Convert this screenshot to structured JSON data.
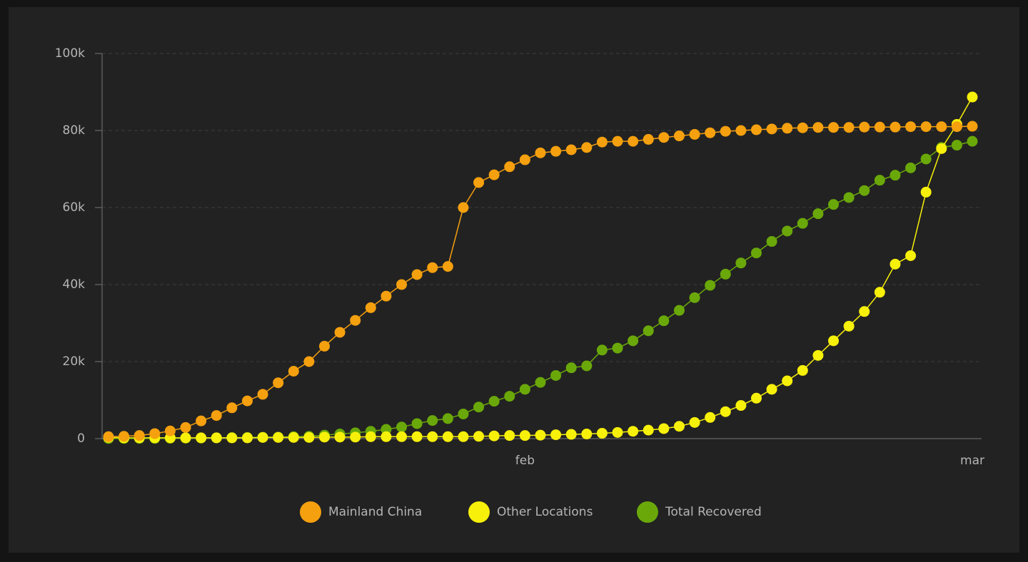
{
  "chart_data": {
    "type": "line",
    "categories": [
      null,
      null,
      null,
      null,
      null,
      null,
      null,
      null,
      null,
      null,
      null,
      null,
      null,
      null,
      null,
      null,
      null,
      null,
      null,
      null,
      null,
      null,
      null,
      null,
      null,
      null,
      null,
      "feb",
      null,
      null,
      null,
      null,
      null,
      null,
      null,
      null,
      null,
      null,
      null,
      null,
      null,
      null,
      null,
      null,
      null,
      null,
      null,
      null,
      null,
      null,
      null,
      null,
      null,
      null,
      null,
      null,
      "mar"
    ],
    "series": [
      {
        "name": "Mainland China",
        "color": "#f5a00f",
        "values": [
          500,
          600,
          800,
          1300,
          2000,
          2900,
          4600,
          6000,
          8000,
          9800,
          11500,
          14500,
          17500,
          20000,
          24000,
          27600,
          30700,
          34000,
          37000,
          40000,
          42600,
          44400,
          44700,
          60000,
          66500,
          68500,
          70600,
          72400,
          74200,
          74600,
          75000,
          75600,
          77000,
          77200,
          77200,
          77700,
          78200,
          78600,
          79000,
          79400,
          79800,
          80000,
          80200,
          80400,
          80600,
          80700,
          80800,
          80800,
          80800,
          80900,
          80900,
          80900,
          81000,
          81000,
          81000,
          81000,
          81100
        ]
      },
      {
        "name": "Other Locations",
        "color": "#f7f00a",
        "values": [
          300,
          200,
          200,
          200,
          200,
          200,
          200,
          200,
          200,
          200,
          300,
          300,
          300,
          300,
          400,
          400,
          400,
          500,
          500,
          500,
          500,
          500,
          500,
          500,
          600,
          700,
          800,
          800,
          900,
          1000,
          1100,
          1200,
          1400,
          1600,
          1900,
          2200,
          2600,
          3200,
          4200,
          5500,
          7000,
          8600,
          10500,
          12800,
          15000,
          17700,
          21600,
          25400,
          29200,
          33000,
          38000,
          45300,
          47500,
          64000,
          75300,
          81600,
          88700
        ]
      },
      {
        "name": "Total Recovered",
        "color": "#6aa80a",
        "values": [
          30,
          40,
          50,
          60,
          100,
          120,
          150,
          200,
          250,
          300,
          350,
          400,
          500,
          600,
          900,
          1200,
          1500,
          1900,
          2400,
          3000,
          3900,
          4700,
          5200,
          6400,
          8200,
          9700,
          11000,
          12800,
          14600,
          16400,
          18400,
          18900,
          23000,
          23500,
          25400,
          28000,
          30600,
          33300,
          36600,
          39800,
          42700,
          45600,
          48200,
          51200,
          53900,
          55900,
          58400,
          60800,
          62600,
          64400,
          67100,
          68400,
          70300,
          72600,
          75600,
          76200,
          77200
        ]
      }
    ],
    "ylim": [
      0,
      100000
    ],
    "yticks": [
      0,
      {
        "value": 20000,
        "label": "20k"
      },
      {
        "value": 40000,
        "label": "40k"
      },
      {
        "value": 60000,
        "label": "60k"
      },
      {
        "value": 80000,
        "label": "80k"
      },
      {
        "value": 100000,
        "label": "100k"
      }
    ],
    "grid": true
  }
}
